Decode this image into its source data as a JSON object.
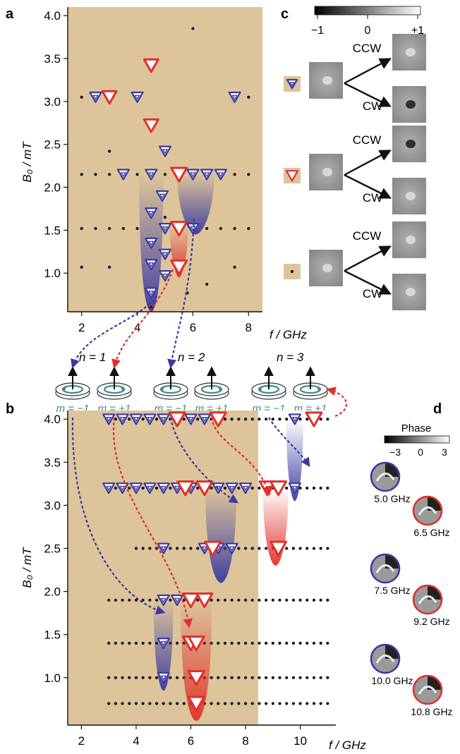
{
  "panels": {
    "a": "a",
    "b": "b",
    "c": "c",
    "d": "d"
  },
  "colors": {
    "tan": "#ddc49a",
    "blue": "#3a3aa0",
    "red": "#e0302a",
    "teal": "#3a8f83",
    "black": "#111111"
  },
  "panel_a": {
    "ylabel": "B₀ / mT",
    "xunit": "f / GHz",
    "yticks": [
      "4.0",
      "3.5",
      "3.0",
      "2.5",
      "2.0",
      "1.5",
      "1.0"
    ],
    "xticks": [
      "2",
      "4",
      "6",
      "8"
    ]
  },
  "panel_b": {
    "ylabel": "B₀ / mT",
    "xunit": "f / GHz",
    "yticks": [
      "4.0",
      "3.5",
      "3.0",
      "2.5",
      "2.0",
      "1.5",
      "1.0"
    ],
    "xticks": [
      "2",
      "4",
      "6",
      "8",
      "10"
    ]
  },
  "modes": {
    "n_labels": [
      "n = 1",
      "n = 2",
      "n = 3"
    ],
    "m_labels": [
      "m = −1",
      "m = +1",
      "m = −1",
      "m = +1",
      "m = −1",
      "m = +1"
    ]
  },
  "panel_c": {
    "colorbar_ticks": [
      "−1",
      "0",
      "+1"
    ],
    "rows": [
      {
        "marker": "blue-triangle",
        "top": "CCW",
        "bottom": "CW"
      },
      {
        "marker": "red-triangle",
        "top": "CCW",
        "bottom": "CW"
      },
      {
        "marker": "dot",
        "top": "CCW",
        "bottom": "CW"
      }
    ]
  },
  "panel_d": {
    "title": "Phase",
    "colorbar_ticks": [
      "−3",
      "0",
      "3"
    ],
    "freqs": [
      "5.0 GHz",
      "6.5 GHz",
      "7.5 GHz",
      "9.2 GHz",
      "10.0 GHz",
      "10.8 GHz"
    ]
  },
  "chart_data": [
    {
      "type": "scatter",
      "title": "a",
      "xlabel": "f / GHz",
      "ylabel": "B0 / mT",
      "xlim": [
        1.5,
        8.5
      ],
      "ylim": [
        0.55,
        4.1
      ],
      "series": [
        {
          "marker": "blue-triangle",
          "points": [
            [
              2.5,
              3.05
            ],
            [
              3.0,
              3.05
            ],
            [
              4.0,
              3.05
            ],
            [
              7.5,
              3.05
            ],
            [
              5.0,
              2.42
            ],
            [
              3.5,
              2.15
            ],
            [
              4.5,
              2.15
            ],
            [
              6.0,
              2.15
            ],
            [
              6.5,
              2.15
            ],
            [
              7.0,
              2.15
            ],
            [
              4.9,
              1.9
            ],
            [
              4.5,
              1.7
            ],
            [
              4.5,
              1.35
            ],
            [
              5.0,
              1.52
            ],
            [
              6.0,
              1.52
            ],
            [
              5.0,
              1.22
            ],
            [
              4.5,
              1.1
            ],
            [
              5.0,
              0.97
            ],
            [
              4.5,
              0.77
            ]
          ]
        },
        {
          "marker": "red-triangle",
          "points": [
            [
              3.0,
              3.05
            ],
            [
              4.5,
              3.42
            ],
            [
              4.5,
              2.72
            ],
            [
              5.5,
              2.15
            ],
            [
              5.5,
              1.52
            ],
            [
              5.5,
              1.07
            ]
          ]
        },
        {
          "marker": "dot",
          "points": [
            [
              6.0,
              3.85
            ],
            [
              2.0,
              3.05
            ],
            [
              8.0,
              3.05
            ],
            [
              3.0,
              2.42
            ],
            [
              2.0,
              2.15
            ],
            [
              2.5,
              2.15
            ],
            [
              3.0,
              2.15
            ],
            [
              4.0,
              2.15
            ],
            [
              5.0,
              2.15
            ],
            [
              7.5,
              2.15
            ],
            [
              8.0,
              2.15
            ],
            [
              2.0,
              1.52
            ],
            [
              2.5,
              1.52
            ],
            [
              3.0,
              1.52
            ],
            [
              3.5,
              1.52
            ],
            [
              4.0,
              1.52
            ],
            [
              6.5,
              1.52
            ],
            [
              7.0,
              1.52
            ],
            [
              7.5,
              1.52
            ],
            [
              8.0,
              1.52
            ],
            [
              5.0,
              1.65
            ],
            [
              2.0,
              1.07
            ],
            [
              3.0,
              1.07
            ],
            [
              7.5,
              1.07
            ],
            [
              6.5,
              0.87
            ],
            [
              5.8,
              0.77
            ],
            [
              4.5,
              0.6
            ]
          ]
        }
      ]
    },
    {
      "type": "scatter",
      "title": "b",
      "xlabel": "f / GHz",
      "ylabel": "B0 / mT",
      "xlim": [
        1.5,
        11.3
      ],
      "ylim": [
        0.45,
        4.1
      ],
      "series": [
        {
          "marker": "blue-triangle",
          "points": [
            [
              3.0,
              4.0
            ],
            [
              3.5,
              4.0
            ],
            [
              4.0,
              4.0
            ],
            [
              4.5,
              4.0
            ],
            [
              5.0,
              4.0
            ],
            [
              6.0,
              4.0
            ],
            [
              6.5,
              4.0
            ],
            [
              7.0,
              4.0
            ],
            [
              9.8,
              4.0
            ],
            [
              3.0,
              3.2
            ],
            [
              3.5,
              3.2
            ],
            [
              4.0,
              3.2
            ],
            [
              4.5,
              3.2
            ],
            [
              5.0,
              3.2
            ],
            [
              5.5,
              3.2
            ],
            [
              6.0,
              3.2
            ],
            [
              7.0,
              3.2
            ],
            [
              7.5,
              3.2
            ],
            [
              8.0,
              3.2
            ],
            [
              9.8,
              3.2
            ],
            [
              5.0,
              2.5
            ],
            [
              6.5,
              2.5
            ],
            [
              7.0,
              2.5
            ],
            [
              7.5,
              2.5
            ],
            [
              5.0,
              1.9
            ],
            [
              5.5,
              1.9
            ],
            [
              5.0,
              1.4
            ],
            [
              5.0,
              1.0
            ]
          ]
        },
        {
          "marker": "red-triangle",
          "points": [
            [
              5.5,
              4.0
            ],
            [
              7.0,
              4.0
            ],
            [
              10.5,
              4.0
            ],
            [
              5.8,
              3.2
            ],
            [
              6.5,
              3.2
            ],
            [
              8.8,
              3.2
            ],
            [
              9.2,
              3.2
            ],
            [
              6.8,
              2.5
            ],
            [
              9.2,
              2.5
            ],
            [
              6.0,
              1.9
            ],
            [
              6.5,
              1.9
            ],
            [
              6.0,
              1.4
            ],
            [
              6.2,
              1.4
            ],
            [
              6.2,
              1.0
            ],
            [
              6.2,
              0.7
            ]
          ]
        },
        {
          "marker": "dot",
          "points": []
        }
      ]
    }
  ]
}
